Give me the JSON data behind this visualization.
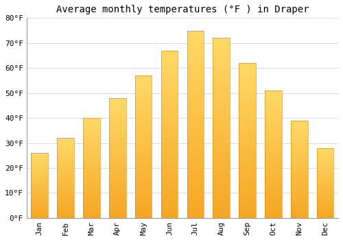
{
  "title": "Average monthly temperatures (°F ) in Draper",
  "months": [
    "Jan",
    "Feb",
    "Mar",
    "Apr",
    "May",
    "Jun",
    "Jul",
    "Aug",
    "Sep",
    "Oct",
    "Nov",
    "Dec"
  ],
  "values": [
    26,
    32,
    40,
    48,
    57,
    67,
    75,
    72,
    62,
    51,
    39,
    28
  ],
  "bar_color_bottom": "#F5A623",
  "bar_color_top": "#FFD966",
  "background_color": "#FFFFFF",
  "plot_bg_color": "#FFFFFF",
  "grid_color": "#DDDDDD",
  "ylim": [
    0,
    80
  ],
  "yticks": [
    0,
    10,
    20,
    30,
    40,
    50,
    60,
    70,
    80
  ],
  "title_fontsize": 10,
  "tick_fontsize": 8,
  "bar_width": 0.65,
  "figsize": [
    5.0,
    3.5
  ],
  "dpi": 100
}
